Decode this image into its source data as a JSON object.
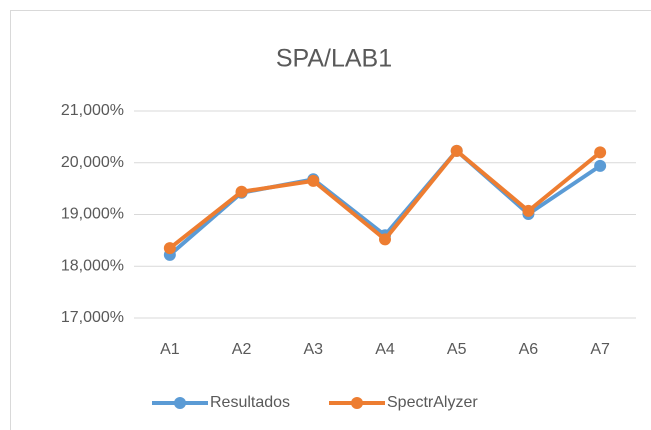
{
  "chart_data": {
    "type": "line",
    "title": "SPA/LAB1",
    "categories": [
      "A1",
      "A2",
      "A3",
      "A4",
      "A5",
      "A6",
      "A7"
    ],
    "series": [
      {
        "name": "Resultados",
        "color": "#5b9bd5",
        "values": [
          18.22,
          19.42,
          19.68,
          18.6,
          20.23,
          19.01,
          19.94
        ]
      },
      {
        "name": "SpectrAlyzer",
        "color": "#ed7d31",
        "values": [
          18.35,
          19.44,
          19.65,
          18.52,
          20.23,
          19.07,
          20.2
        ]
      }
    ],
    "ylim": [
      17,
      21
    ],
    "yticks": [
      {
        "value": 17,
        "label": "17,000%"
      },
      {
        "value": 18,
        "label": "18,000%"
      },
      {
        "value": 19,
        "label": "19,000%"
      },
      {
        "value": 20,
        "label": "20,000%"
      },
      {
        "value": 21,
        "label": "21,000%"
      }
    ],
    "grid": true,
    "legend": "bottom"
  }
}
